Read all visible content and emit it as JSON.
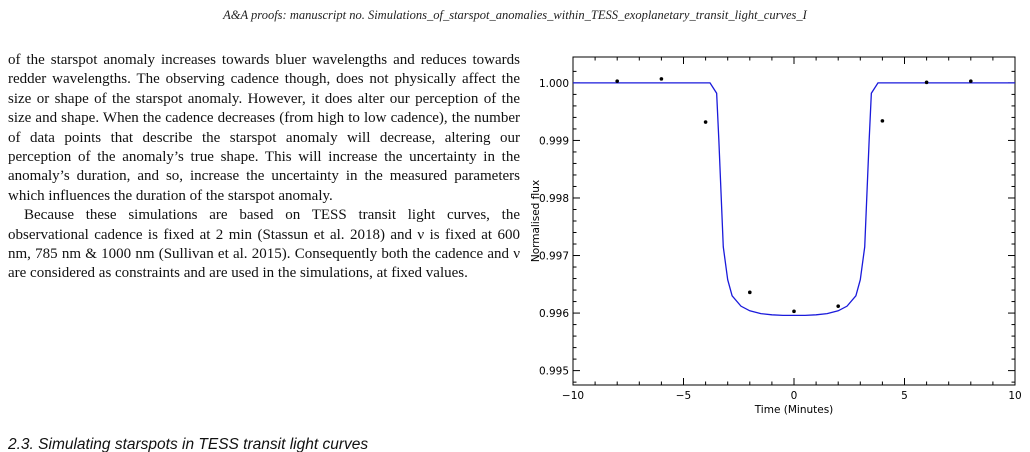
{
  "running_head": "A&A proofs: manuscript no. Simulations_of_starspot_anomalies_within_TESS_exoplanetary_transit_light_curves_I",
  "paragraphs": [
    "of the starspot anomaly increases towards bluer wavelengths and reduces towards redder wavelengths. The observing cadence though, does not physically affect the size or shape of the starspot anomaly. However, it does alter our perception of the size and shape. When the cadence decreases (from high to low cadence), the number of data points that describe the starspot anomaly will decrease, altering our perception of the anomaly’s true shape. This will increase the uncertainty in the anomaly’s duration, and so, increase the uncertainty in the measured parameters which influences the duration of the starspot anomaly.",
    "Because these simulations are based on TESS transit light curves, the observational cadence is fixed at 2 min (Stassun et al. 2018) and ν is fixed at 600 nm, 785 nm & 1000 nm (Sullivan et al. 2015). Consequently both the cadence and ν are considered as constraints and are used in the simulations, at fixed values."
  ],
  "section_heading": "2.3. Simulating starspots in TESS transit light curves",
  "chart_data": {
    "type": "line",
    "title": "",
    "xlabel": "Time (Minutes)",
    "ylabel": "Normalised flux",
    "xlim": [
      -10,
      10
    ],
    "ylim": [
      0.99475,
      1.00045
    ],
    "x_ticks": [
      -10,
      -5,
      0,
      5,
      10
    ],
    "y_ticks": [
      0.995,
      0.996,
      0.997,
      0.998,
      0.999,
      1.0
    ],
    "x_tick_labels": [
      "−10",
      "−5",
      "0",
      "5",
      "10"
    ],
    "y_tick_labels": [
      "0.995",
      "0.996",
      "0.997",
      "0.998",
      "0.999",
      "1.000"
    ],
    "grid": false,
    "series": [
      {
        "kind": "line",
        "color": "#1a1adb",
        "x": [
          -10,
          -3.8,
          -3.5,
          -3.4,
          -3.2,
          -3.0,
          -2.8,
          -2.4,
          -2.0,
          -1.5,
          -1.0,
          -0.5,
          0,
          0.5,
          1.0,
          1.5,
          2.0,
          2.4,
          2.8,
          3.0,
          3.2,
          3.4,
          3.5,
          3.8,
          10
        ],
        "y": [
          1.0,
          1.0,
          0.99982,
          0.999,
          0.99715,
          0.99658,
          0.9963,
          0.99612,
          0.99604,
          0.99599,
          0.99597,
          0.99596,
          0.99596,
          0.99596,
          0.99597,
          0.99599,
          0.99604,
          0.99612,
          0.9963,
          0.99658,
          0.99715,
          0.999,
          0.99982,
          1.0,
          1.0
        ]
      },
      {
        "kind": "scatter",
        "color": "#000000",
        "x": [
          -8,
          -6,
          -4,
          -2,
          0,
          2,
          4,
          6,
          8
        ],
        "y": [
          1.00003,
          1.00007,
          0.99932,
          0.99636,
          0.99603,
          0.99612,
          0.99934,
          1.00001,
          1.00003
        ]
      }
    ]
  }
}
